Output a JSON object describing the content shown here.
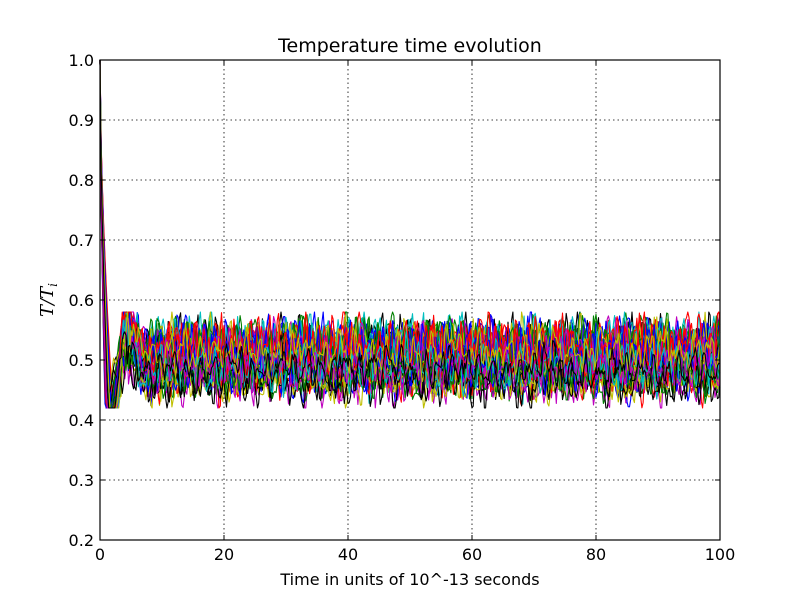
{
  "chart_data": {
    "type": "line",
    "title": "Temperature time evolution",
    "xlabel": "Time in units of 10^-13 seconds",
    "ylabel_base": "T/T",
    "ylabel_sub": "i",
    "xlim": [
      0,
      100
    ],
    "ylim": [
      0.2,
      1.0
    ],
    "xticks": [
      "0",
      "20",
      "40",
      "60",
      "80",
      "100"
    ],
    "yticks": [
      "0.2",
      "0.3",
      "0.4",
      "0.5",
      "0.6",
      "0.7",
      "0.8",
      "0.9",
      "1.0"
    ],
    "xtick_values": [
      0,
      20,
      40,
      60,
      80,
      100
    ],
    "ytick_values": [
      0.2,
      0.3,
      0.4,
      0.5,
      0.6,
      0.7,
      0.8,
      0.9,
      1.0
    ],
    "grid": true,
    "colors": [
      "#0000ff",
      "#008000",
      "#ff0000",
      "#00bfbf",
      "#bf00bf",
      "#bfbf00",
      "#000000"
    ],
    "series_count": 56,
    "series_profile": {
      "initial_value": 1.0,
      "minimum": {
        "x": 1.5,
        "y_range": [
          0.26,
          0.45
        ]
      },
      "steady_state_mean": 0.5,
      "steady_state_band": [
        0.43,
        0.57
      ],
      "x_end": 100
    }
  }
}
